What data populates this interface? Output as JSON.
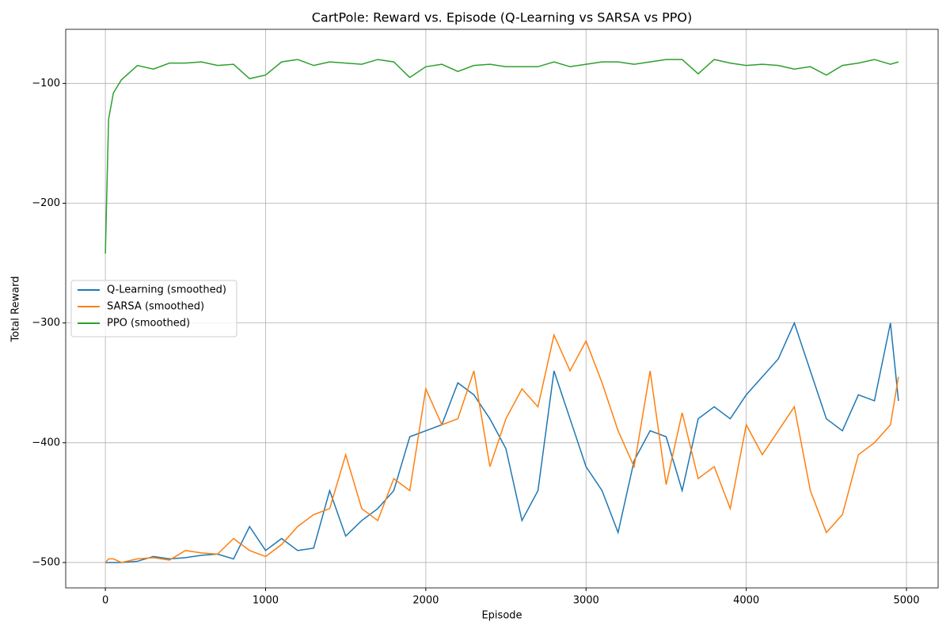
{
  "chart_data": {
    "type": "line",
    "title": "CartPole: Reward vs. Episode (Q-Learning vs SARSA vs PPO)",
    "xlabel": "Episode",
    "ylabel": "Total Reward",
    "x": [
      0,
      20,
      50,
      100,
      200,
      300,
      400,
      500,
      600,
      700,
      800,
      900,
      1000,
      1100,
      1200,
      1300,
      1400,
      1500,
      1600,
      1700,
      1800,
      1900,
      2000,
      2100,
      2200,
      2300,
      2400,
      2500,
      2600,
      2700,
      2800,
      2900,
      3000,
      3100,
      3200,
      3300,
      3400,
      3500,
      3600,
      3700,
      3800,
      3900,
      4000,
      4100,
      4200,
      4300,
      4400,
      4500,
      4600,
      4700,
      4800,
      4900,
      4950
    ],
    "series": [
      {
        "name": "Q-Learning (smoothed)",
        "color": "#1f77b4",
        "values": [
          -500,
          -500,
          -500,
          -500,
          -499,
          -495,
          -497,
          -496,
          -494,
          -493,
          -497,
          -470,
          -490,
          -480,
          -490,
          -488,
          -440,
          -478,
          -465,
          -455,
          -440,
          -395,
          -390,
          -385,
          -350,
          -360,
          -380,
          -405,
          -465,
          -440,
          -340,
          -380,
          -420,
          -440,
          -475,
          -415,
          -390,
          -395,
          -440,
          -380,
          -370,
          -380,
          -360,
          -345,
          -330,
          -300,
          -340,
          -380,
          -390,
          -360,
          -365,
          -300,
          -365
        ]
      },
      {
        "name": "SARSA (smoothed)",
        "color": "#ff7f0e",
        "values": [
          -500,
          -497,
          -497,
          -500,
          -497,
          -496,
          -498,
          -490,
          -492,
          -493,
          -480,
          -490,
          -495,
          -485,
          -470,
          -460,
          -455,
          -410,
          -455,
          -465,
          -430,
          -440,
          -355,
          -385,
          -380,
          -340,
          -420,
          -380,
          -355,
          -370,
          -310,
          -340,
          -315,
          -350,
          -390,
          -420,
          -340,
          -435,
          -375,
          -430,
          -420,
          -455,
          -385,
          -410,
          -390,
          -370,
          -440,
          -475,
          -460,
          -410,
          -400,
          -385,
          -345
        ]
      },
      {
        "name": "PPO (smoothed)",
        "color": "#2ca02c",
        "values": [
          -242,
          -130,
          -108,
          -97,
          -85,
          -88,
          -83,
          -83,
          -82,
          -85,
          -84,
          -96,
          -93,
          -82,
          -80,
          -85,
          -82,
          -83,
          -84,
          -80,
          -82,
          -95,
          -86,
          -84,
          -90,
          -85,
          -84,
          -86,
          -86,
          -86,
          -82,
          -86,
          -84,
          -82,
          -82,
          -84,
          -82,
          -80,
          -80,
          -92,
          -80,
          -83,
          -85,
          -84,
          -85,
          -88,
          -86,
          -93,
          -85,
          -83,
          -80,
          -84,
          -82
        ]
      }
    ],
    "xlim": [
      -247.5,
      5197.5
    ],
    "ylim": [
      -521.2,
      -54.8
    ],
    "xticks": [
      0,
      1000,
      2000,
      3000,
      4000,
      5000
    ],
    "yticks": [
      {
        "value": -500,
        "label": "−500"
      },
      {
        "value": -400,
        "label": "−400"
      },
      {
        "value": -300,
        "label": "−300"
      },
      {
        "value": -200,
        "label": "−200"
      },
      {
        "value": -100,
        "label": "−100"
      }
    ],
    "grid": true,
    "legend": "center left"
  }
}
